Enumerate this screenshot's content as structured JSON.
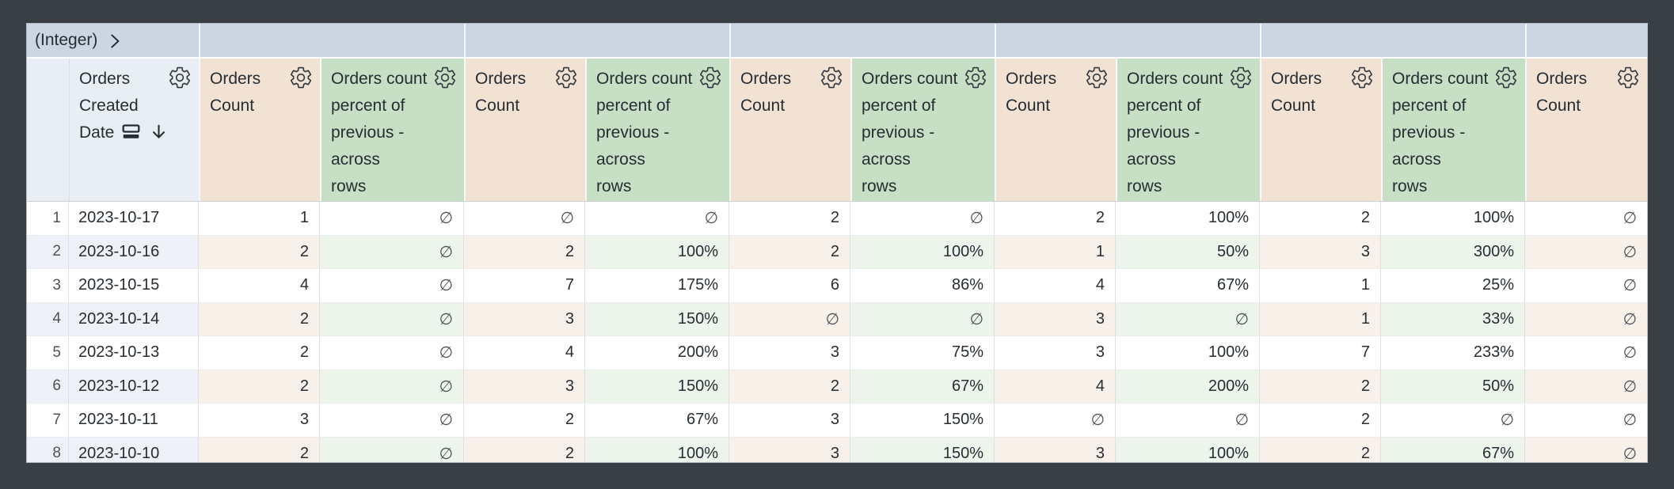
{
  "pivot_row": {
    "field_label": "(Integer)",
    "group_count": 6
  },
  "header": {
    "dimension": {
      "label": "Orders Created Date",
      "lines": "Orders\nCreated\nDate",
      "sort_direction": "descending"
    },
    "count_label": "Orders Count",
    "count_lines": "Orders\nCount",
    "percent_label": "Orders count percent of previous - across rows",
    "percent_lines": "Orders count\npercent of\nprevious -\nacross\nrows"
  },
  "null_symbol": "∅",
  "rows": [
    {
      "row_number": "1",
      "date": "2023-10-17",
      "values": [
        "1",
        "∅",
        "∅",
        "∅",
        "2",
        "∅",
        "2",
        "100%",
        "2",
        "100%",
        "∅"
      ]
    },
    {
      "row_number": "2",
      "date": "2023-10-16",
      "values": [
        "2",
        "∅",
        "2",
        "100%",
        "2",
        "100%",
        "1",
        "50%",
        "3",
        "300%",
        "∅"
      ]
    },
    {
      "row_number": "3",
      "date": "2023-10-15",
      "values": [
        "4",
        "∅",
        "7",
        "175%",
        "6",
        "86%",
        "4",
        "67%",
        "1",
        "25%",
        "∅"
      ]
    },
    {
      "row_number": "4",
      "date": "2023-10-14",
      "values": [
        "2",
        "∅",
        "3",
        "150%",
        "∅",
        "∅",
        "3",
        "∅",
        "1",
        "33%",
        "∅"
      ]
    },
    {
      "row_number": "5",
      "date": "2023-10-13",
      "values": [
        "2",
        "∅",
        "4",
        "200%",
        "3",
        "75%",
        "3",
        "100%",
        "7",
        "233%",
        "∅"
      ]
    },
    {
      "row_number": "6",
      "date": "2023-10-12",
      "values": [
        "2",
        "∅",
        "3",
        "150%",
        "2",
        "67%",
        "4",
        "200%",
        "2",
        "50%",
        "∅"
      ]
    },
    {
      "row_number": "7",
      "date": "2023-10-11",
      "values": [
        "3",
        "∅",
        "2",
        "67%",
        "3",
        "150%",
        "∅",
        "∅",
        "2",
        "∅",
        "∅"
      ]
    },
    {
      "row_number": "8",
      "date": "2023-10-10",
      "values": [
        "2",
        "∅",
        "2",
        "100%",
        "3",
        "150%",
        "3",
        "100%",
        "2",
        "67%",
        "∅"
      ]
    }
  ],
  "colors": {
    "canvas_background": "#3a3f45",
    "pivot_header_background": "#ccd6e3",
    "dimension_header_background": "#e9eef5",
    "count_header_background": "#f1e2d3",
    "percent_header_background": "#c7dfc4",
    "even_row_dimension_tint": "#eef1f7",
    "even_row_count_tint": "#f8f1ea",
    "even_row_percent_tint": "#edf4ec",
    "text": "#262d33",
    "null_text": "#4b5157"
  }
}
